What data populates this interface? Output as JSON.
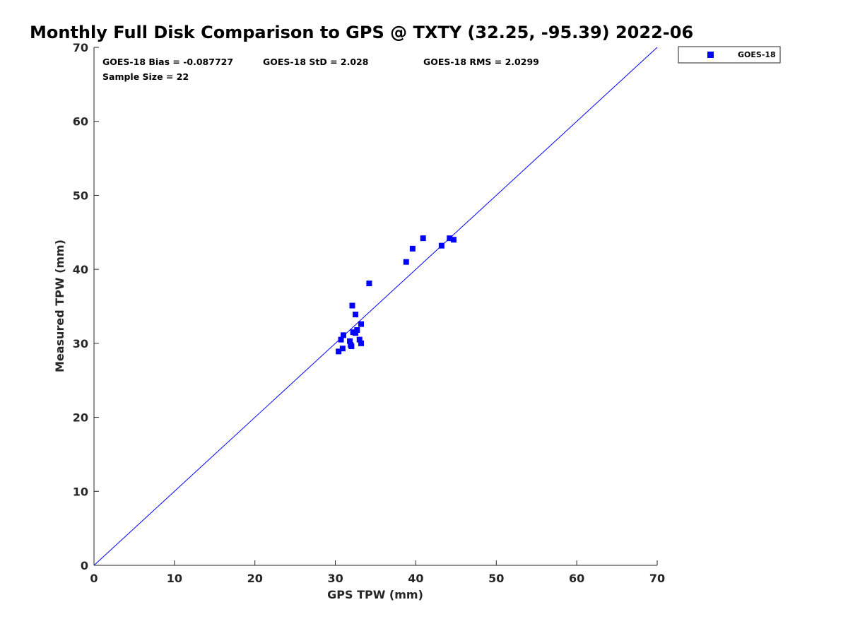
{
  "chart_data": {
    "type": "scatter",
    "title": "Monthly Full Disk Comparison to GPS @ TXTY (32.25, -95.39) 2022-06",
    "xlabel": "GPS TPW (mm)",
    "ylabel": "Measured TPW (mm)",
    "xlim": [
      0,
      70
    ],
    "ylim": [
      0,
      70
    ],
    "xticks": [
      0,
      10,
      20,
      30,
      40,
      50,
      60,
      70
    ],
    "yticks": [
      0,
      10,
      20,
      30,
      40,
      50,
      60,
      70
    ],
    "grid": false,
    "legend": {
      "placement": "outside-top-right",
      "entries": [
        "GOES-18"
      ]
    },
    "reference_line": {
      "x": [
        0,
        70
      ],
      "y": [
        0,
        70
      ],
      "color": "#0000ff"
    },
    "annotations": {
      "bias": "GOES-18 Bias = -0.087727",
      "std": "GOES-18 StD = 2.028",
      "rms": "GOES-18 RMS = 2.0299",
      "sample": "Sample Size = 22"
    },
    "series": [
      {
        "name": "GOES-18",
        "color": "#0000ff",
        "marker": "square",
        "points": [
          [
            30.4,
            28.9
          ],
          [
            30.9,
            29.3
          ],
          [
            30.7,
            30.5
          ],
          [
            31.0,
            31.1
          ],
          [
            31.8,
            30.3
          ],
          [
            31.9,
            29.8
          ],
          [
            32.0,
            29.6
          ],
          [
            32.2,
            31.5
          ],
          [
            32.5,
            31.4
          ],
          [
            32.7,
            31.8
          ],
          [
            33.0,
            30.5
          ],
          [
            33.2,
            30.0
          ],
          [
            33.2,
            32.6
          ],
          [
            32.1,
            35.1
          ],
          [
            32.5,
            33.9
          ],
          [
            34.2,
            38.1
          ],
          [
            38.8,
            41.0
          ],
          [
            39.6,
            42.8
          ],
          [
            40.9,
            44.2
          ],
          [
            43.2,
            43.2
          ],
          [
            44.2,
            44.2
          ],
          [
            44.7,
            44.0
          ]
        ]
      }
    ]
  }
}
